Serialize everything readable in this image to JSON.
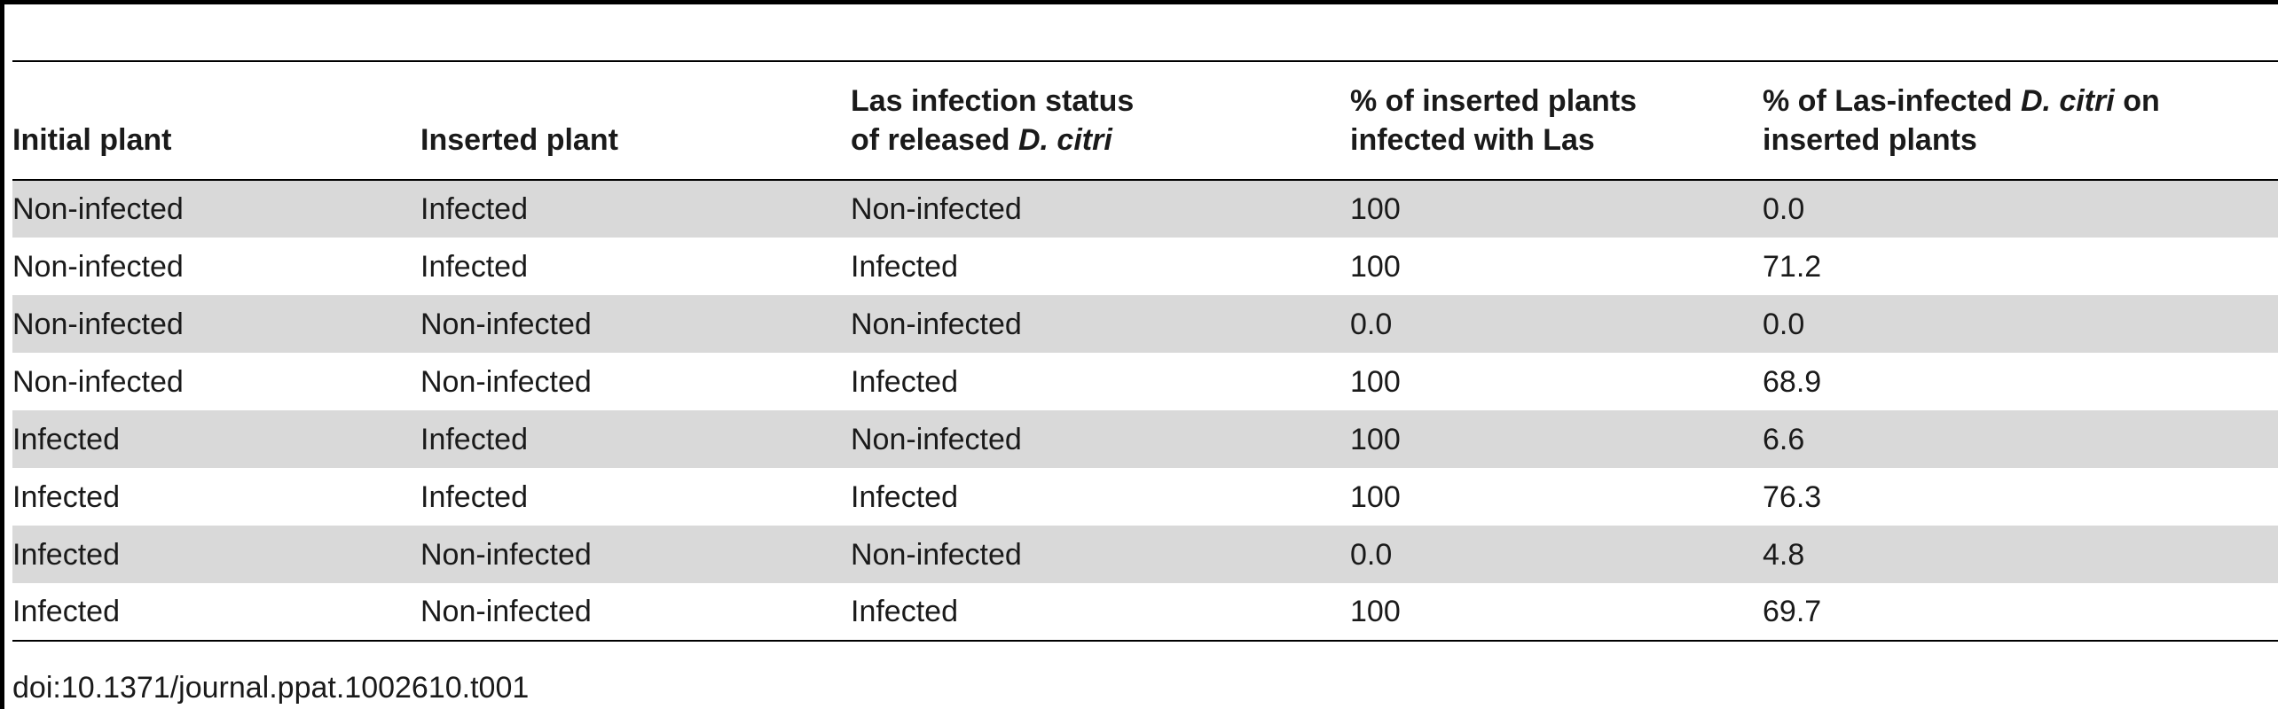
{
  "table": {
    "headers": [
      {
        "lines": [
          {
            "parts": [
              {
                "t": "Initial plant"
              }
            ]
          }
        ]
      },
      {
        "lines": [
          {
            "parts": [
              {
                "t": "Inserted plant"
              }
            ]
          }
        ]
      },
      {
        "lines": [
          {
            "parts": [
              {
                "t": "Las infection status"
              }
            ]
          },
          {
            "parts": [
              {
                "t": "of released "
              },
              {
                "t": "D. citri",
                "i": true
              }
            ]
          }
        ]
      },
      {
        "lines": [
          {
            "parts": [
              {
                "t": "% of inserted plants"
              }
            ]
          },
          {
            "parts": [
              {
                "t": "infected with Las"
              }
            ]
          }
        ]
      },
      {
        "lines": [
          {
            "parts": [
              {
                "t": "% of Las-infected "
              },
              {
                "t": "D. citri",
                "i": true
              },
              {
                "t": " on"
              }
            ]
          },
          {
            "parts": [
              {
                "t": "inserted plants"
              }
            ]
          }
        ]
      }
    ],
    "rows": [
      [
        "Non-infected",
        "Infected",
        "Non-infected",
        "100",
        "0.0"
      ],
      [
        "Non-infected",
        "Infected",
        "Infected",
        "100",
        "71.2"
      ],
      [
        "Non-infected",
        "Non-infected",
        "Non-infected",
        "0.0",
        "0.0"
      ],
      [
        "Non-infected",
        "Non-infected",
        "Infected",
        "100",
        "68.9"
      ],
      [
        "Infected",
        "Infected",
        "Non-infected",
        "100",
        "6.6"
      ],
      [
        "Infected",
        "Infected",
        "Infected",
        "100",
        "76.3"
      ],
      [
        "Infected",
        "Non-infected",
        "Non-infected",
        "0.0",
        "4.8"
      ],
      [
        "Infected",
        "Non-infected",
        "Infected",
        "100",
        "69.7"
      ]
    ]
  },
  "footer": {
    "doi": "doi:10.1371/journal.ppat.1002610.t001"
  }
}
